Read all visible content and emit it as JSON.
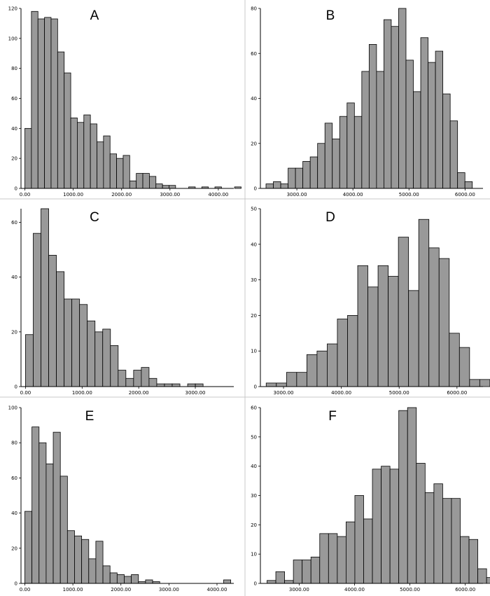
{
  "chart_data": [
    {
      "id": "A",
      "type": "bar",
      "title": "A",
      "bin_start": 0,
      "bin_width": 135.5,
      "values": [
        40,
        118,
        113,
        114,
        113,
        91,
        77,
        47,
        44,
        49,
        43,
        31,
        35,
        23,
        20,
        22,
        5,
        10,
        10,
        8,
        3,
        2,
        2,
        0,
        0,
        1,
        0,
        1,
        0,
        1,
        0,
        0,
        1
      ],
      "xlim": [
        -80,
        4320
      ],
      "ylim": [
        0,
        120
      ],
      "xticks": [
        0,
        1000,
        2000,
        3000,
        4000
      ],
      "xtick_labels": [
        "0.00",
        "1000.00",
        "2000.00",
        "3000.00",
        "4000.00"
      ],
      "yticks": [
        0,
        20,
        40,
        60,
        80,
        100,
        120
      ],
      "ytick_labels": [
        "0",
        "20",
        "40",
        "60",
        "80",
        "100",
        "120"
      ]
    },
    {
      "id": "B",
      "type": "bar",
      "title": "B",
      "bin_start": 2450,
      "bin_width": 131.4,
      "values": [
        2,
        3,
        2,
        9,
        9,
        12,
        14,
        20,
        29,
        22,
        32,
        38,
        32,
        52,
        64,
        52,
        75,
        72,
        80,
        57,
        43,
        67,
        56,
        61,
        42,
        30,
        7,
        3
      ],
      "xlim": [
        2350,
        6320
      ],
      "ylim": [
        0,
        80
      ],
      "xticks": [
        3000,
        4000,
        5000,
        6000
      ],
      "xtick_labels": [
        "3000.00",
        "4000.00",
        "5000.00",
        "6000.00"
      ],
      "yticks": [
        0,
        20,
        40,
        60,
        80
      ],
      "ytick_labels": [
        "0",
        "20",
        "40",
        "60",
        "80"
      ]
    },
    {
      "id": "C",
      "type": "bar",
      "title": "C",
      "bin_start": 0,
      "bin_width": 136.4,
      "values": [
        19,
        56,
        65,
        48,
        42,
        32,
        32,
        30,
        24,
        20,
        21,
        15,
        6,
        3,
        6,
        7,
        3,
        1,
        1,
        1,
        0,
        1,
        1
      ],
      "xlim": [
        -80,
        3680
      ],
      "ylim": [
        0,
        65
      ],
      "xticks": [
        0,
        1000,
        2000,
        3000
      ],
      "xtick_labels": [
        "0.00",
        "1000.00",
        "2000.00",
        "3000.00"
      ],
      "yticks": [
        0,
        20,
        40,
        60
      ],
      "ytick_labels": [
        "0",
        "20",
        "40",
        "60"
      ]
    },
    {
      "id": "D",
      "type": "bar",
      "title": "D",
      "bin_start": 2700,
      "bin_width": 175.9,
      "values": [
        1,
        1,
        4,
        4,
        9,
        10,
        12,
        19,
        20,
        34,
        28,
        34,
        31,
        42,
        27,
        47,
        39,
        36,
        15,
        11,
        2,
        2
      ],
      "xlim": [
        2600,
        6450
      ],
      "ylim": [
        0,
        50
      ],
      "xticks": [
        3000,
        4000,
        5000,
        6000
      ],
      "xtick_labels": [
        "3000.00",
        "4000.00",
        "5000.00",
        "6000.00"
      ],
      "yticks": [
        0,
        10,
        20,
        30,
        40,
        50
      ],
      "ytick_labels": [
        "0",
        "10",
        "20",
        "30",
        "40",
        "50"
      ]
    },
    {
      "id": "E",
      "type": "bar",
      "title": "E",
      "bin_start": 0,
      "bin_width": 147.8,
      "values": [
        41,
        89,
        80,
        68,
        86,
        61,
        30,
        27,
        25,
        14,
        24,
        10,
        6,
        5,
        4,
        5,
        1,
        2,
        1,
        0,
        0,
        0,
        0,
        0,
        0,
        0,
        0,
        0,
        2
      ],
      "xlim": [
        -80,
        4350
      ],
      "ylim": [
        0,
        100
      ],
      "xticks": [
        0,
        1000,
        2000,
        3000,
        4000
      ],
      "xtick_labels": [
        "0.00",
        "1000.00",
        "2000.00",
        "3000.00",
        "4000.00"
      ],
      "yticks": [
        0,
        20,
        40,
        60,
        80,
        100
      ],
      "ytick_labels": [
        "0",
        "20",
        "40",
        "60",
        "80",
        "100"
      ]
    },
    {
      "id": "F",
      "type": "bar",
      "title": "F",
      "bin_start": 2420,
      "bin_width": 158.6,
      "values": [
        1,
        4,
        1,
        8,
        8,
        9,
        17,
        17,
        16,
        21,
        30,
        22,
        39,
        40,
        39,
        59,
        60,
        41,
        31,
        34,
        29,
        29,
        16,
        15,
        5,
        2
      ],
      "xlim": [
        2300,
        6320
      ],
      "ylim": [
        0,
        60
      ],
      "xticks": [
        3000,
        4000,
        5000,
        6000
      ],
      "xtick_labels": [
        "3000.00",
        "4000.00",
        "5000.00",
        "6000.00"
      ],
      "yticks": [
        0,
        10,
        20,
        30,
        40,
        50,
        60
      ],
      "ytick_labels": [
        "0",
        "10",
        "20",
        "30",
        "40",
        "50",
        "60"
      ]
    }
  ]
}
